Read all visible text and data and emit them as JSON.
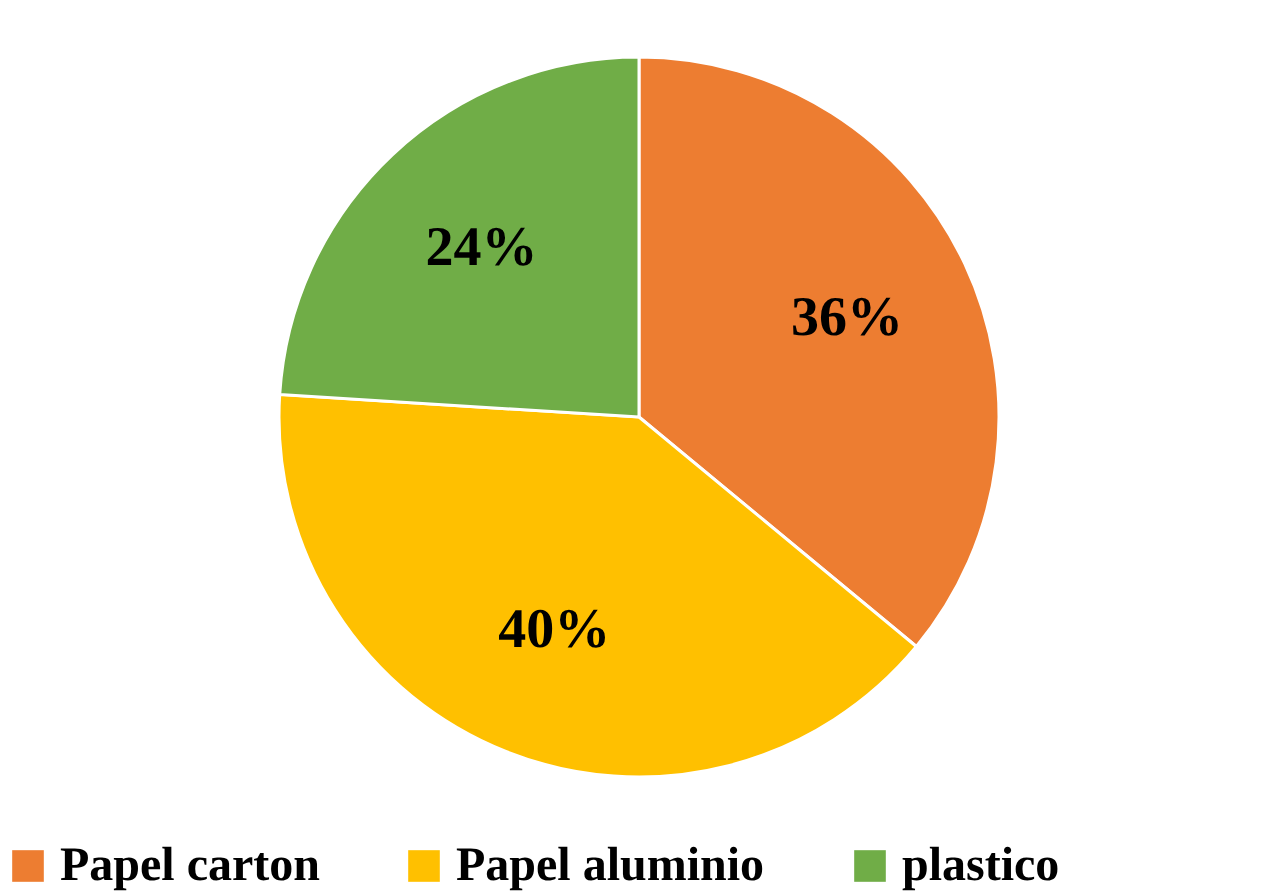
{
  "chart_data": {
    "type": "pie",
    "categories": [
      "Papel carton",
      "Papel aluminio",
      "plastico"
    ],
    "values": [
      36,
      40,
      24
    ],
    "colors": [
      "#ed7d31",
      "#ffc000",
      "#70ad47"
    ],
    "value_labels": [
      "36%",
      "40%",
      "24%"
    ],
    "legend": "bottom"
  }
}
